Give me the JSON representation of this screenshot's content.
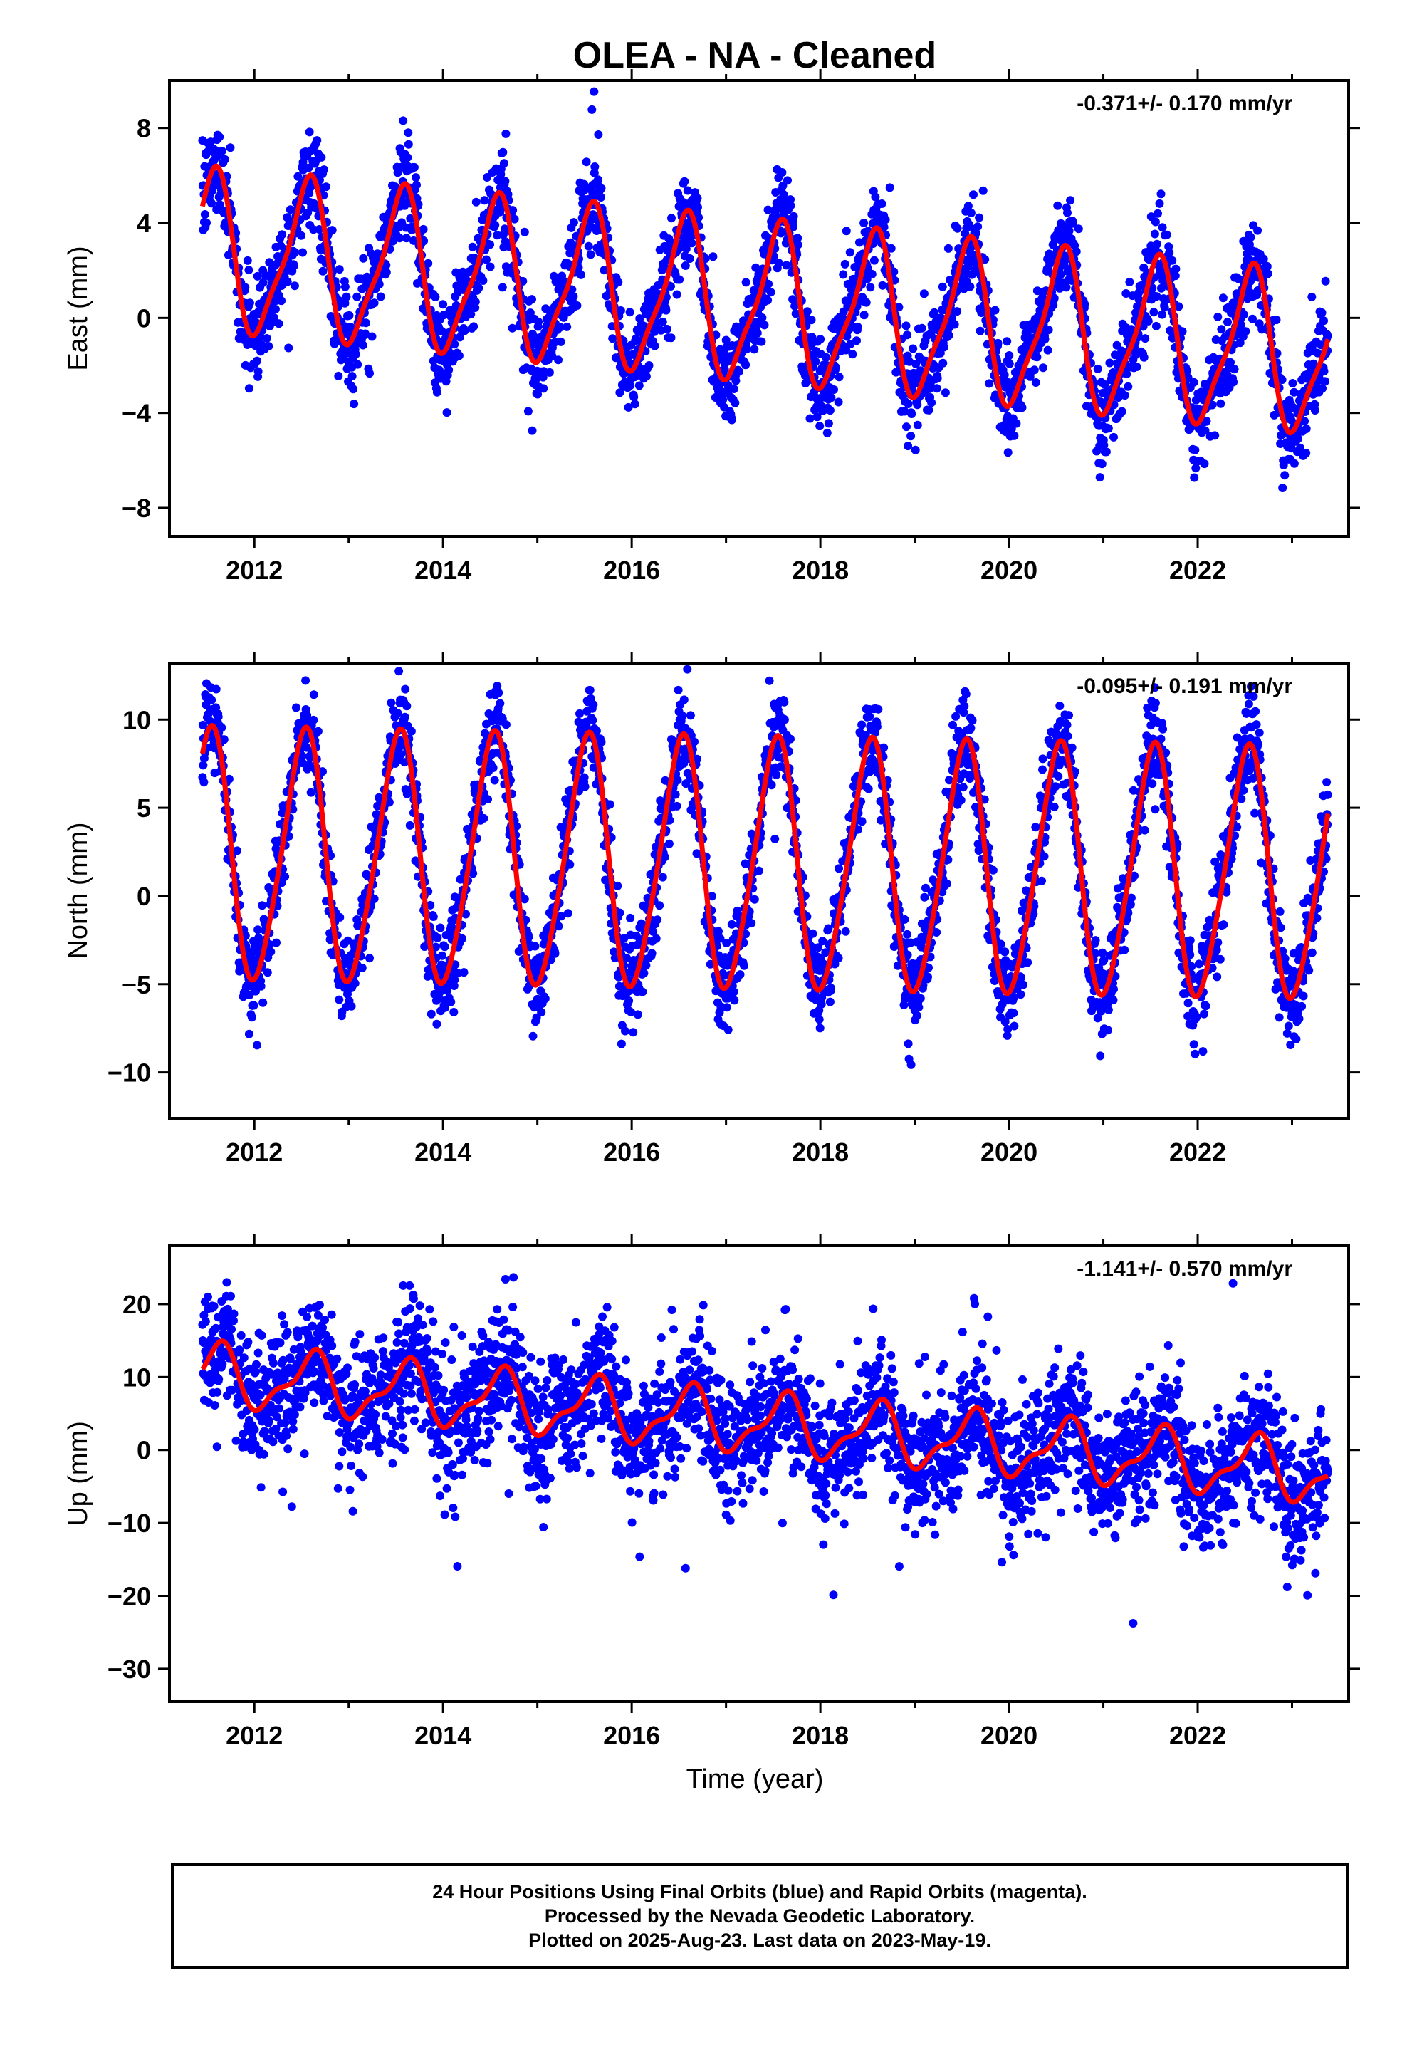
{
  "title": "OLEA  - NA - Cleaned",
  "colors": {
    "observations": "#0000ff",
    "model": "#ff0000",
    "frame": "#000000"
  },
  "x_axis": {
    "label": "Time (year)",
    "range": [
      2011.1,
      2023.6
    ],
    "tick_labels": [
      "2012",
      "2014",
      "2016",
      "2018",
      "2020",
      "2022"
    ]
  },
  "chart_data": [
    {
      "type": "scatter",
      "component": "east",
      "ylabel": "East (mm)",
      "ylim": [
        -9.2,
        10
      ],
      "y_tick_labels": [
        "8",
        "4",
        "0",
        "−4",
        "−8"
      ],
      "y_ticks": [
        8,
        4,
        0,
        -4,
        -8
      ],
      "rate_label": "-0.371+/- 0.170 mm/yr",
      "model": {
        "offset": 0.7,
        "trend": -0.371,
        "amp_annual": 3.2,
        "amp_semiannual": 0.8,
        "peak": 0.55,
        "noise_sd": 1.0
      },
      "x_range": [
        2011.45,
        2023.38
      ],
      "series": [
        {
          "name": "Final Orbits (blue)",
          "kind": "points"
        },
        {
          "name": "model fit",
          "kind": "line"
        }
      ]
    },
    {
      "type": "scatter",
      "component": "north",
      "ylabel": "North (mm)",
      "ylim": [
        -12.6,
        13.2
      ],
      "y_tick_labels": [
        "10",
        "5",
        "0",
        "−5",
        "−10"
      ],
      "y_ticks": [
        10,
        5,
        0,
        -5,
        -10
      ],
      "rate_label": "-0.095+/- 0.191 mm/yr",
      "model": {
        "offset": 1.7,
        "trend": -0.095,
        "amp_annual": 7.0,
        "amp_semiannual": 0.9,
        "peak": 0.52,
        "noise_sd": 1.3
      },
      "x_range": [
        2011.45,
        2023.38
      ],
      "series": [
        {
          "name": "Final Orbits (blue)",
          "kind": "points"
        },
        {
          "name": "model fit",
          "kind": "line"
        }
      ]
    },
    {
      "type": "scatter",
      "component": "up",
      "ylabel": "Up (mm)",
      "ylim": [
        -34.5,
        28
      ],
      "y_tick_labels": [
        "20",
        "10",
        "0",
        "−10",
        "−20",
        "−30"
      ],
      "y_ticks": [
        20,
        10,
        0,
        -10,
        -20,
        -30
      ],
      "rate_label": "-1.141+/- 0.570 mm/yr",
      "model": {
        "offset": 4.0,
        "trend": -1.141,
        "amp_annual": 3.8,
        "amp_semiannual": 1.5,
        "peak": 0.6,
        "noise_sd": 4.5
      },
      "x_range": [
        2011.45,
        2023.38
      ],
      "series": [
        {
          "name": "Final Orbits (blue)",
          "kind": "points"
        },
        {
          "name": "model fit",
          "kind": "line"
        }
      ]
    }
  ],
  "footer": {
    "line1": "24 Hour Positions Using Final Orbits (blue) and Rapid Orbits (magenta).",
    "line2": "Processed by the Nevada Geodetic Laboratory.",
    "line3": "Plotted on 2025-Aug-23. Last data on 2023-May-19."
  }
}
